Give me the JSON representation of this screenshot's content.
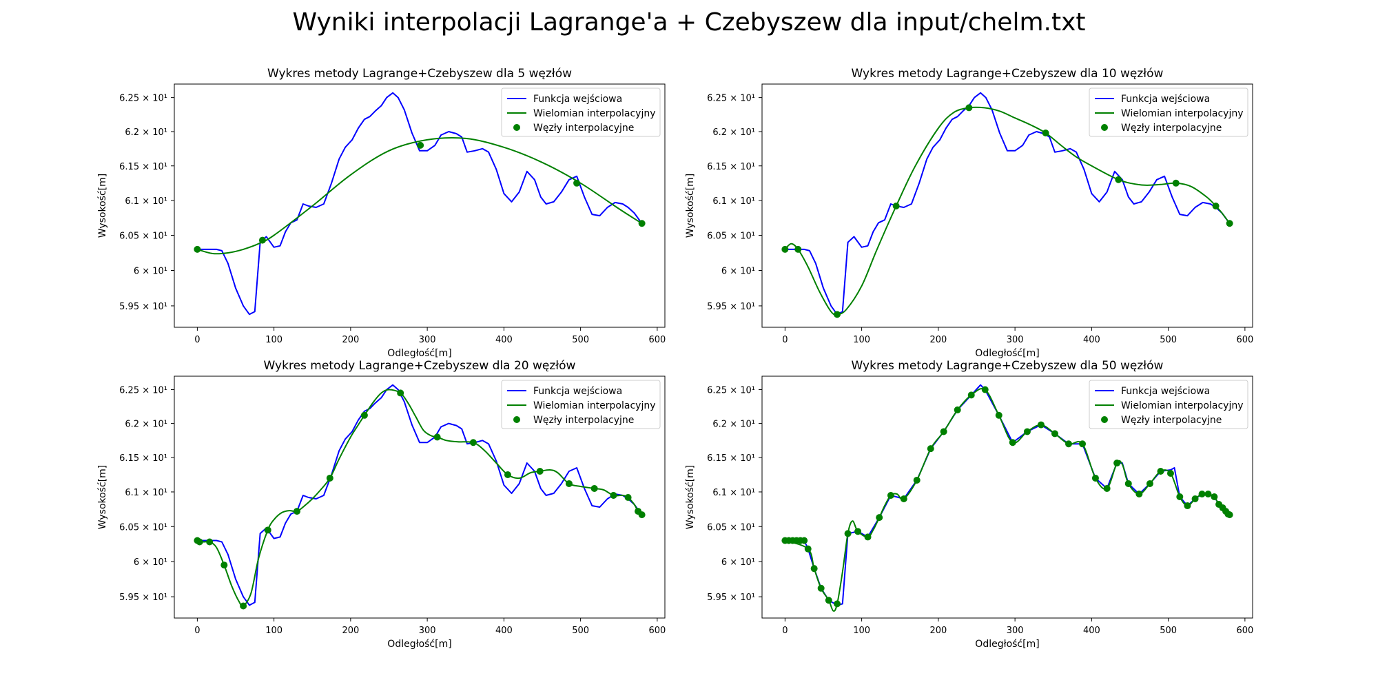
{
  "suptitle": "Wyniki interpolacji Lagrange'a + Czebyszew dla input/chelm.txt",
  "colors": {
    "function": "#0000ff",
    "polynomial": "#008000",
    "nodes": "#008000"
  },
  "legend_labels": [
    "Funkcja wejściowa",
    "Wielomian interpolacyjny",
    "Węzły interpolacyjne"
  ],
  "chart_data": [
    {
      "type": "line",
      "title": "Wykres metody Lagrange+Czebyszew dla 5 węzłów",
      "xlabel": "Odległość[m]",
      "ylabel": "Wysokość[m]",
      "xlim": [
        -30,
        610
      ],
      "ylim": [
        59.2,
        62.7
      ],
      "yscale": "log",
      "xticks": [
        0,
        100,
        200,
        300,
        400,
        500,
        600
      ],
      "yticks": [
        59.5,
        60.0,
        60.5,
        61.0,
        61.5,
        62.0,
        62.5
      ],
      "ytick_labels": [
        "5.95 × 10¹",
        "6 × 10¹",
        "6.05 × 10¹",
        "6.1 × 10¹",
        "6.15 × 10¹",
        "6.2 × 10¹",
        "6.25 × 10¹"
      ],
      "legend_position": "upper right",
      "nodes": {
        "x": [
          0,
          85,
          291,
          495,
          580
        ],
        "y": [
          60.3,
          60.43,
          61.8,
          61.25,
          60.67
        ]
      },
      "poly": {
        "x": [
          0,
          20,
          40,
          60,
          80,
          100,
          150,
          200,
          250,
          300,
          350,
          400,
          450,
          500,
          550,
          580
        ],
        "y": [
          60.3,
          60.24,
          60.25,
          60.3,
          60.38,
          60.5,
          60.92,
          61.37,
          61.72,
          61.88,
          61.9,
          61.77,
          61.55,
          61.25,
          60.88,
          60.67
        ]
      }
    },
    {
      "type": "line",
      "title": "Wykres metody Lagrange+Czebyszew dla 10 węzłów",
      "xlabel": "Odległość[m]",
      "ylabel": "Wysokość[m]",
      "xlim": [
        -30,
        610
      ],
      "ylim": [
        59.2,
        62.7
      ],
      "yscale": "log",
      "xticks": [
        0,
        100,
        200,
        300,
        400,
        500,
        600
      ],
      "yticks": [
        59.5,
        60.0,
        60.5,
        61.0,
        61.5,
        62.0,
        62.5
      ],
      "ytick_labels": [
        "5.95 × 10¹",
        "6 × 10¹",
        "6.05 × 10¹",
        "6.1 × 10¹",
        "6.15 × 10¹",
        "6.2 × 10¹",
        "6.25 × 10¹"
      ],
      "legend_position": "upper right",
      "nodes": {
        "x": [
          0,
          17,
          68,
          145,
          240,
          340,
          435,
          510,
          562,
          580
        ],
        "y": [
          60.3,
          60.3,
          59.38,
          60.92,
          62.35,
          61.98,
          61.3,
          61.25,
          60.92,
          60.67
        ]
      },
      "poly": {
        "x": [
          0,
          8,
          17,
          30,
          45,
          60,
          68,
          80,
          100,
          120,
          145,
          170,
          200,
          220,
          240,
          260,
          280,
          300,
          320,
          340,
          360,
          380,
          400,
          420,
          435,
          450,
          470,
          490,
          510,
          530,
          550,
          562,
          570,
          580
        ],
        "y": [
          60.3,
          60.38,
          60.3,
          60.05,
          59.7,
          59.42,
          59.38,
          59.45,
          59.78,
          60.3,
          60.92,
          61.5,
          62.05,
          62.28,
          62.35,
          62.35,
          62.3,
          62.2,
          62.1,
          61.98,
          61.8,
          61.63,
          61.5,
          61.38,
          61.3,
          61.25,
          61.22,
          61.23,
          61.25,
          61.2,
          61.05,
          60.92,
          60.82,
          60.67
        ]
      }
    },
    {
      "type": "line",
      "title": "Wykres metody Lagrange+Czebyszew dla 20 węzłów",
      "xlabel": "Odległość[m]",
      "ylabel": "Wysokość[m]",
      "xlim": [
        -30,
        610
      ],
      "ylim": [
        59.2,
        62.7
      ],
      "yscale": "log",
      "xticks": [
        0,
        100,
        200,
        300,
        400,
        500,
        600
      ],
      "yticks": [
        59.5,
        60.0,
        60.5,
        61.0,
        61.5,
        62.0,
        62.5
      ],
      "ytick_labels": [
        "5.95 × 10¹",
        "6 × 10¹",
        "6.05 × 10¹",
        "6.1 × 10¹",
        "6.15 × 10¹",
        "6.2 × 10¹",
        "6.25 × 10¹"
      ],
      "legend_position": "upper right",
      "nodes": {
        "x": [
          0,
          3,
          16,
          35,
          60,
          92,
          130,
          173,
          218,
          265,
          313,
          360,
          405,
          447,
          485,
          518,
          543,
          562,
          575,
          580
        ],
        "y": [
          60.3,
          60.28,
          60.28,
          59.95,
          59.37,
          60.45,
          60.72,
          61.2,
          62.12,
          62.45,
          61.8,
          61.72,
          61.25,
          61.3,
          61.12,
          61.05,
          60.95,
          60.92,
          60.72,
          60.67
        ]
      },
      "poly": {
        "x": [
          0,
          8,
          16,
          25,
          35,
          45,
          55,
          60,
          70,
          80,
          92,
          100,
          110,
          120,
          130,
          140,
          150,
          160,
          173,
          185,
          200,
          210,
          218,
          230,
          240,
          250,
          265,
          275,
          285,
          295,
          305,
          313,
          325,
          340,
          360,
          375,
          390,
          405,
          420,
          435,
          447,
          460,
          470,
          485,
          500,
          518,
          530,
          543,
          555,
          562,
          570,
          575,
          580
        ],
        "y": [
          60.3,
          60.28,
          60.28,
          60.2,
          59.95,
          59.65,
          59.42,
          59.37,
          59.55,
          60.05,
          60.45,
          60.6,
          60.7,
          60.73,
          60.72,
          60.8,
          60.9,
          61.02,
          61.2,
          61.48,
          61.8,
          61.98,
          62.12,
          62.32,
          62.45,
          62.5,
          62.45,
          62.3,
          62.1,
          61.9,
          61.82,
          61.8,
          61.75,
          61.73,
          61.72,
          61.6,
          61.42,
          61.25,
          61.2,
          61.28,
          61.3,
          61.32,
          61.28,
          61.12,
          61.08,
          61.05,
          61.03,
          60.95,
          60.95,
          60.92,
          60.82,
          60.72,
          60.67
        ]
      }
    },
    {
      "type": "line",
      "title": "Wykres metody Lagrange+Czebyszew dla 50 węzłów",
      "xlabel": "Odległość[m]",
      "ylabel": "Wysokość[m]",
      "xlim": [
        -30,
        610
      ],
      "ylim": [
        59.2,
        62.7
      ],
      "yscale": "log",
      "xticks": [
        0,
        100,
        200,
        300,
        400,
        500,
        600
      ],
      "yticks": [
        59.5,
        60.0,
        60.5,
        61.0,
        61.5,
        62.0,
        62.5
      ],
      "ytick_labels": [
        "5.95 × 10¹",
        "6 × 10¹",
        "6.05 × 10¹",
        "6.1 × 10¹",
        "6.15 × 10¹",
        "6.2 × 10¹",
        "6.25 × 10¹"
      ],
      "legend_position": "upper right",
      "nodes": {
        "x": [
          0,
          5,
          10,
          15,
          20,
          25,
          30,
          38,
          47,
          57,
          68,
          82,
          95,
          108,
          123,
          138,
          155,
          172,
          190,
          207,
          225,
          243,
          261,
          279,
          297,
          316,
          334,
          352,
          370,
          388,
          405,
          420,
          433,
          448,
          462,
          476,
          490,
          503,
          515,
          525,
          535,
          544,
          552,
          560,
          566,
          571,
          575,
          578,
          580
        ],
        "y": [
          60.3,
          60.3,
          60.3,
          60.3,
          60.3,
          60.3,
          60.18,
          59.9,
          59.62,
          59.45,
          59.4,
          60.4,
          60.43,
          60.35,
          60.63,
          60.95,
          60.9,
          61.17,
          61.63,
          61.88,
          62.2,
          62.42,
          62.5,
          62.12,
          61.72,
          61.88,
          61.98,
          61.85,
          61.7,
          61.7,
          61.2,
          61.05,
          61.42,
          61.12,
          60.97,
          61.12,
          61.3,
          61.27,
          60.93,
          60.8,
          60.9,
          60.97,
          60.97,
          60.93,
          60.82,
          60.77,
          60.72,
          60.68,
          60.67
        ]
      },
      "poly": {
        "x": [
          0,
          30,
          38,
          47,
          57,
          63,
          68,
          75,
          82,
          88,
          95,
          108,
          115,
          123,
          130,
          138,
          146,
          155,
          172,
          190,
          207,
          225,
          243,
          261,
          279,
          297,
          316,
          334,
          352,
          370,
          388,
          405,
          420,
          433,
          440,
          448,
          462,
          476,
          490,
          503,
          515,
          525,
          535,
          544,
          552,
          560,
          566,
          571,
          575,
          578,
          580
        ],
        "y": [
          60.3,
          60.18,
          59.9,
          59.62,
          59.45,
          59.3,
          59.4,
          59.85,
          60.4,
          60.58,
          60.43,
          60.35,
          60.45,
          60.63,
          60.8,
          60.95,
          60.97,
          60.9,
          61.17,
          61.63,
          61.88,
          62.2,
          62.42,
          62.5,
          62.12,
          61.72,
          61.88,
          61.98,
          61.85,
          61.7,
          61.7,
          61.2,
          61.05,
          61.42,
          61.4,
          61.12,
          60.97,
          61.12,
          61.3,
          61.27,
          60.93,
          60.8,
          60.9,
          60.97,
          60.97,
          60.93,
          60.82,
          60.77,
          60.72,
          60.68,
          60.67
        ]
      },
      "func": {
        "x": [
          0,
          5,
          10,
          15,
          20,
          25,
          30,
          38,
          47,
          57,
          68,
          75,
          82,
          95,
          108,
          123,
          138,
          155,
          172,
          190,
          207,
          225,
          243,
          255,
          261,
          279,
          297,
          316,
          334,
          352,
          370,
          388,
          405,
          420,
          433,
          440,
          448,
          462,
          476,
          490,
          503,
          508,
          515,
          525,
          535,
          544,
          552,
          560,
          566,
          571,
          575,
          578,
          580
        ],
        "y": [
          60.3,
          60.3,
          60.3,
          60.3,
          60.3,
          60.3,
          60.18,
          59.9,
          59.62,
          59.45,
          59.38,
          59.4,
          60.4,
          60.43,
          60.35,
          60.63,
          60.95,
          60.9,
          61.17,
          61.63,
          61.88,
          62.2,
          62.42,
          62.57,
          62.5,
          62.12,
          61.72,
          61.88,
          61.98,
          61.85,
          61.7,
          61.7,
          61.2,
          61.05,
          61.42,
          61.42,
          61.12,
          60.97,
          61.12,
          61.3,
          61.32,
          61.35,
          60.93,
          60.8,
          60.9,
          60.97,
          60.97,
          60.93,
          60.82,
          60.77,
          60.72,
          60.68,
          60.67
        ]
      }
    }
  ],
  "input_function": {
    "x": [
      0,
      10,
      17,
      25,
      32,
      40,
      50,
      60,
      68,
      75,
      82,
      90,
      100,
      108,
      115,
      122,
      130,
      138,
      145,
      155,
      165,
      175,
      185,
      193,
      202,
      210,
      218,
      225,
      232,
      240,
      247,
      255,
      262,
      270,
      280,
      290,
      300,
      310,
      318,
      328,
      338,
      345,
      352,
      362,
      372,
      380,
      390,
      400,
      410,
      420,
      430,
      440,
      448,
      455,
      465,
      475,
      485,
      495,
      505,
      515,
      525,
      535,
      545,
      555,
      562,
      570,
      580
    ],
    "y": [
      60.3,
      60.3,
      60.3,
      60.3,
      60.28,
      60.1,
      59.75,
      59.5,
      59.38,
      59.42,
      60.4,
      60.48,
      60.33,
      60.35,
      60.55,
      60.68,
      60.72,
      60.95,
      60.92,
      60.9,
      60.95,
      61.25,
      61.6,
      61.77,
      61.88,
      62.05,
      62.18,
      62.22,
      62.3,
      62.38,
      62.5,
      62.57,
      62.5,
      62.32,
      61.98,
      61.72,
      61.72,
      61.8,
      61.95,
      62.0,
      61.97,
      61.92,
      61.7,
      61.72,
      61.75,
      61.7,
      61.45,
      61.1,
      60.98,
      61.12,
      61.42,
      61.3,
      61.05,
      60.95,
      60.98,
      61.12,
      61.3,
      61.35,
      61.05,
      60.8,
      60.78,
      60.9,
      60.97,
      60.95,
      60.9,
      60.82,
      60.67
    ]
  }
}
